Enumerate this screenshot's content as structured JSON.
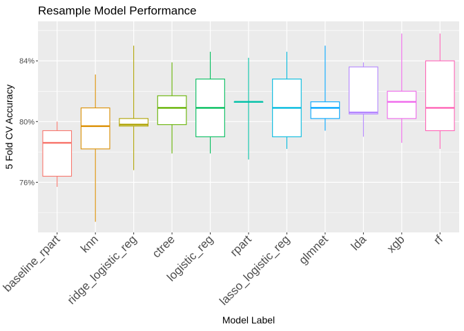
{
  "chart_data": {
    "type": "boxplot",
    "title": "Resample Model Performance",
    "xlabel": "Model Label",
    "ylabel": "5 Fold CV Accuracy",
    "ylim": [
      0.727,
      0.866
    ],
    "yticks": [
      0.76,
      0.8,
      0.84
    ],
    "ytick_labels": [
      "76%",
      "80%",
      "84%"
    ],
    "grid": true,
    "legend": "none",
    "panel_background": "#ebebeb",
    "categories": [
      "baseline_rpart",
      "knn",
      "ridge_logistic_reg",
      "ctree",
      "logistic_reg",
      "rpart",
      "lasso_logistic_reg",
      "glmnet",
      "lda",
      "xgb",
      "rf"
    ],
    "series": [
      {
        "label": "baseline_rpart",
        "color": "#F8766D",
        "min": 0.757,
        "q1": 0.764,
        "median": 0.786,
        "q3": 0.794,
        "max": 0.8
      },
      {
        "label": "knn",
        "color": "#DB8E00",
        "min": 0.734,
        "q1": 0.782,
        "median": 0.797,
        "q3": 0.809,
        "max": 0.831
      },
      {
        "label": "ridge_logistic_reg",
        "color": "#AEA200",
        "min": 0.768,
        "q1": 0.797,
        "median": 0.798,
        "q3": 0.802,
        "max": 0.85
      },
      {
        "label": "ctree",
        "color": "#64B200",
        "min": 0.779,
        "q1": 0.798,
        "median": 0.809,
        "q3": 0.817,
        "max": 0.839
      },
      {
        "label": "logistic_reg",
        "color": "#00BD5C",
        "min": 0.779,
        "q1": 0.79,
        "median": 0.809,
        "q3": 0.828,
        "max": 0.846
      },
      {
        "label": "rpart",
        "color": "#00C1A7",
        "min": 0.775,
        "q1": 0.813,
        "median": 0.813,
        "q3": 0.813,
        "max": 0.842
      },
      {
        "label": "lasso_logistic_reg",
        "color": "#00BADE",
        "min": 0.782,
        "q1": 0.79,
        "median": 0.809,
        "q3": 0.828,
        "max": 0.846
      },
      {
        "label": "glmnet",
        "color": "#00A6FF",
        "min": 0.794,
        "q1": 0.802,
        "median": 0.809,
        "q3": 0.813,
        "max": 0.85
      },
      {
        "label": "lda",
        "color": "#B385FF",
        "min": 0.79,
        "q1": 0.805,
        "median": 0.806,
        "q3": 0.836,
        "max": 0.839
      },
      {
        "label": "xgb",
        "color": "#EF67EB",
        "min": 0.786,
        "q1": 0.802,
        "median": 0.813,
        "q3": 0.82,
        "max": 0.858
      },
      {
        "label": "rf",
        "color": "#FF63B6",
        "min": 0.782,
        "q1": 0.794,
        "median": 0.809,
        "q3": 0.84,
        "max": 0.858
      }
    ]
  }
}
